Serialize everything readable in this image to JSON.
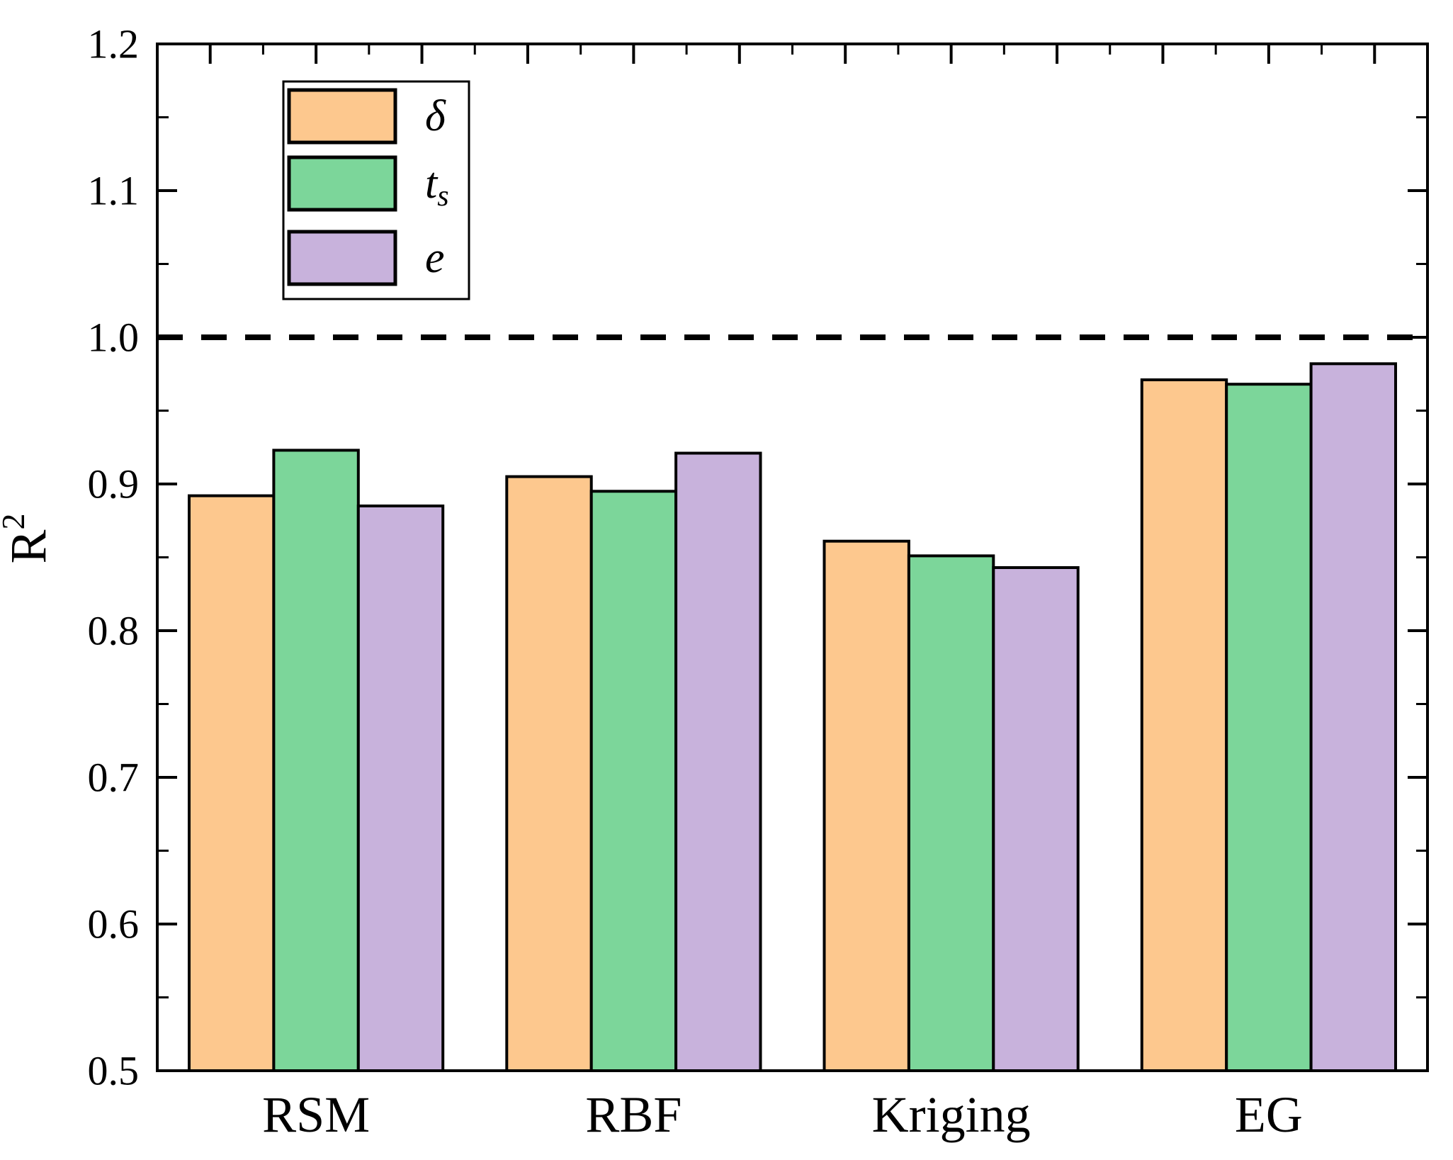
{
  "chart_data": {
    "type": "bar",
    "title": "",
    "categories": [
      "RSM",
      "RBF",
      "Kriging",
      "EG"
    ],
    "series": [
      {
        "name": "delta",
        "legend_label": "δ",
        "legend_subscript": "",
        "color": "#FDC88E",
        "values": [
          0.892,
          0.905,
          0.861,
          0.971
        ]
      },
      {
        "name": "t-s",
        "legend_label": "t",
        "legend_subscript": "s",
        "color": "#7CD69A",
        "values": [
          0.923,
          0.895,
          0.851,
          0.968
        ]
      },
      {
        "name": "e",
        "legend_label": "e",
        "legend_subscript": "",
        "color": "#C8B2DC",
        "values": [
          0.885,
          0.921,
          0.843,
          0.982
        ]
      }
    ],
    "xlabel": "",
    "ylabel": "R",
    "ylabel_superscript": "2",
    "ylim": [
      0.5,
      1.2
    ],
    "ytick_major_step": 0.1,
    "ytick_minor_step": 0.05,
    "ytick_labels": [
      "0.5",
      "0.6",
      "0.7",
      "0.8",
      "0.9",
      "1.0",
      "1.1",
      "1.2"
    ],
    "reference_line_value": 1.0,
    "reference_line_style": "dashed",
    "legend_position": "top-left",
    "grid": false,
    "axis_color": "#000000",
    "bar_edge_color": "#000000",
    "background_color": "#FFFFFF"
  }
}
